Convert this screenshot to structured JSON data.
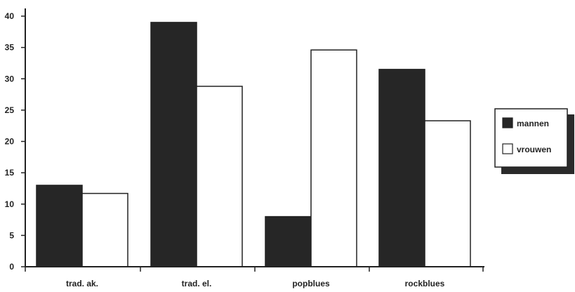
{
  "chart_data": {
    "type": "bar",
    "categories": [
      "trad. ak.",
      "trad. el.",
      "popblues",
      "rockblues"
    ],
    "series": [
      {
        "name": "mannen",
        "values": [
          13,
          39,
          8,
          31.5
        ],
        "color": "#262626"
      },
      {
        "name": "vrouwen",
        "values": [
          11.7,
          28.8,
          34.6,
          23.3
        ],
        "color": "#ffffff"
      }
    ],
    "yticks": [
      0,
      5,
      10,
      15,
      20,
      25,
      30,
      35,
      40
    ],
    "ylim": [
      0,
      40
    ],
    "title": "",
    "xlabel": "",
    "ylabel": "",
    "legend_position": "right",
    "grid": false
  }
}
